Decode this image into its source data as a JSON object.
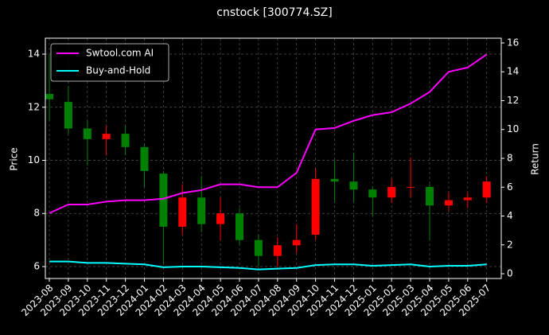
{
  "chart_data": {
    "type": "candlestick",
    "title": "cnstock [300774.SZ]",
    "y_label": "Price",
    "y2_label": "Return",
    "categories": [
      "2023-08",
      "2023-09",
      "2023-10",
      "2023-11",
      "2023-12",
      "2024-01",
      "2024-02",
      "2024-03",
      "2024-04",
      "2024-05",
      "2024-06",
      "2024-07",
      "2024-08",
      "2024-09",
      "2024-10",
      "2024-11",
      "2024-12",
      "2025-01",
      "2025-02",
      "2025-03",
      "2025-04",
      "2025-05",
      "2025-06",
      "2025-07"
    ],
    "open": [
      12.5,
      12.2,
      11.2,
      10.8,
      11.0,
      10.5,
      9.5,
      7.5,
      8.6,
      7.6,
      8.0,
      7.0,
      6.4,
      6.8,
      7.2,
      9.3,
      9.2,
      8.9,
      8.6,
      9.0,
      9.0,
      8.3,
      8.5,
      8.6
    ],
    "high": [
      14.0,
      12.8,
      11.5,
      11.3,
      11.3,
      10.6,
      9.6,
      9.1,
      9.4,
      8.6,
      8.2,
      7.2,
      7.1,
      7.6,
      9.7,
      10.0,
      10.3,
      9.0,
      9.3,
      10.1,
      9.1,
      8.8,
      8.8,
      9.4
    ],
    "low": [
      11.5,
      11.0,
      9.8,
      10.2,
      10.2,
      9.0,
      6.1,
      7.2,
      7.3,
      7.0,
      6.8,
      6.0,
      6.0,
      6.5,
      7.0,
      8.4,
      8.4,
      7.9,
      8.4,
      8.6,
      7.0,
      8.1,
      8.2,
      8.4
    ],
    "close": [
      12.3,
      11.2,
      10.8,
      11.0,
      10.5,
      9.6,
      7.5,
      8.6,
      7.6,
      8.0,
      7.0,
      6.4,
      6.8,
      7.0,
      9.3,
      9.2,
      8.9,
      8.6,
      9.0,
      9.0,
      8.3,
      8.5,
      8.6,
      9.2
    ],
    "up_color": "#ff0000",
    "down_color": "#008000",
    "series": [
      {
        "name": "Swtool.com AI",
        "color": "#ff00ff",
        "axis": "y2",
        "values": [
          4.2,
          4.8,
          4.8,
          5.0,
          5.1,
          5.1,
          5.2,
          5.6,
          5.8,
          6.2,
          6.2,
          6.0,
          6.0,
          7.0,
          10.0,
          10.1,
          10.6,
          11.0,
          11.2,
          11.8,
          12.6,
          14.0,
          14.3,
          15.2
        ]
      },
      {
        "name": "Buy-and-Hold",
        "color": "#00ffff",
        "axis": "y2",
        "values": [
          0.85,
          0.85,
          0.75,
          0.75,
          0.7,
          0.65,
          0.45,
          0.5,
          0.5,
          0.45,
          0.4,
          0.3,
          0.35,
          0.4,
          0.6,
          0.65,
          0.65,
          0.55,
          0.6,
          0.65,
          0.5,
          0.55,
          0.55,
          0.65
        ]
      }
    ],
    "ylim": [
      5.55,
      14.6
    ],
    "yticks": [
      6,
      8,
      10,
      12,
      14
    ],
    "y2lim": [
      -0.33,
      16.33
    ],
    "y2ticks": [
      0,
      2,
      4,
      6,
      8,
      10,
      12,
      14,
      16
    ],
    "grid": true,
    "legend": "upper left"
  }
}
